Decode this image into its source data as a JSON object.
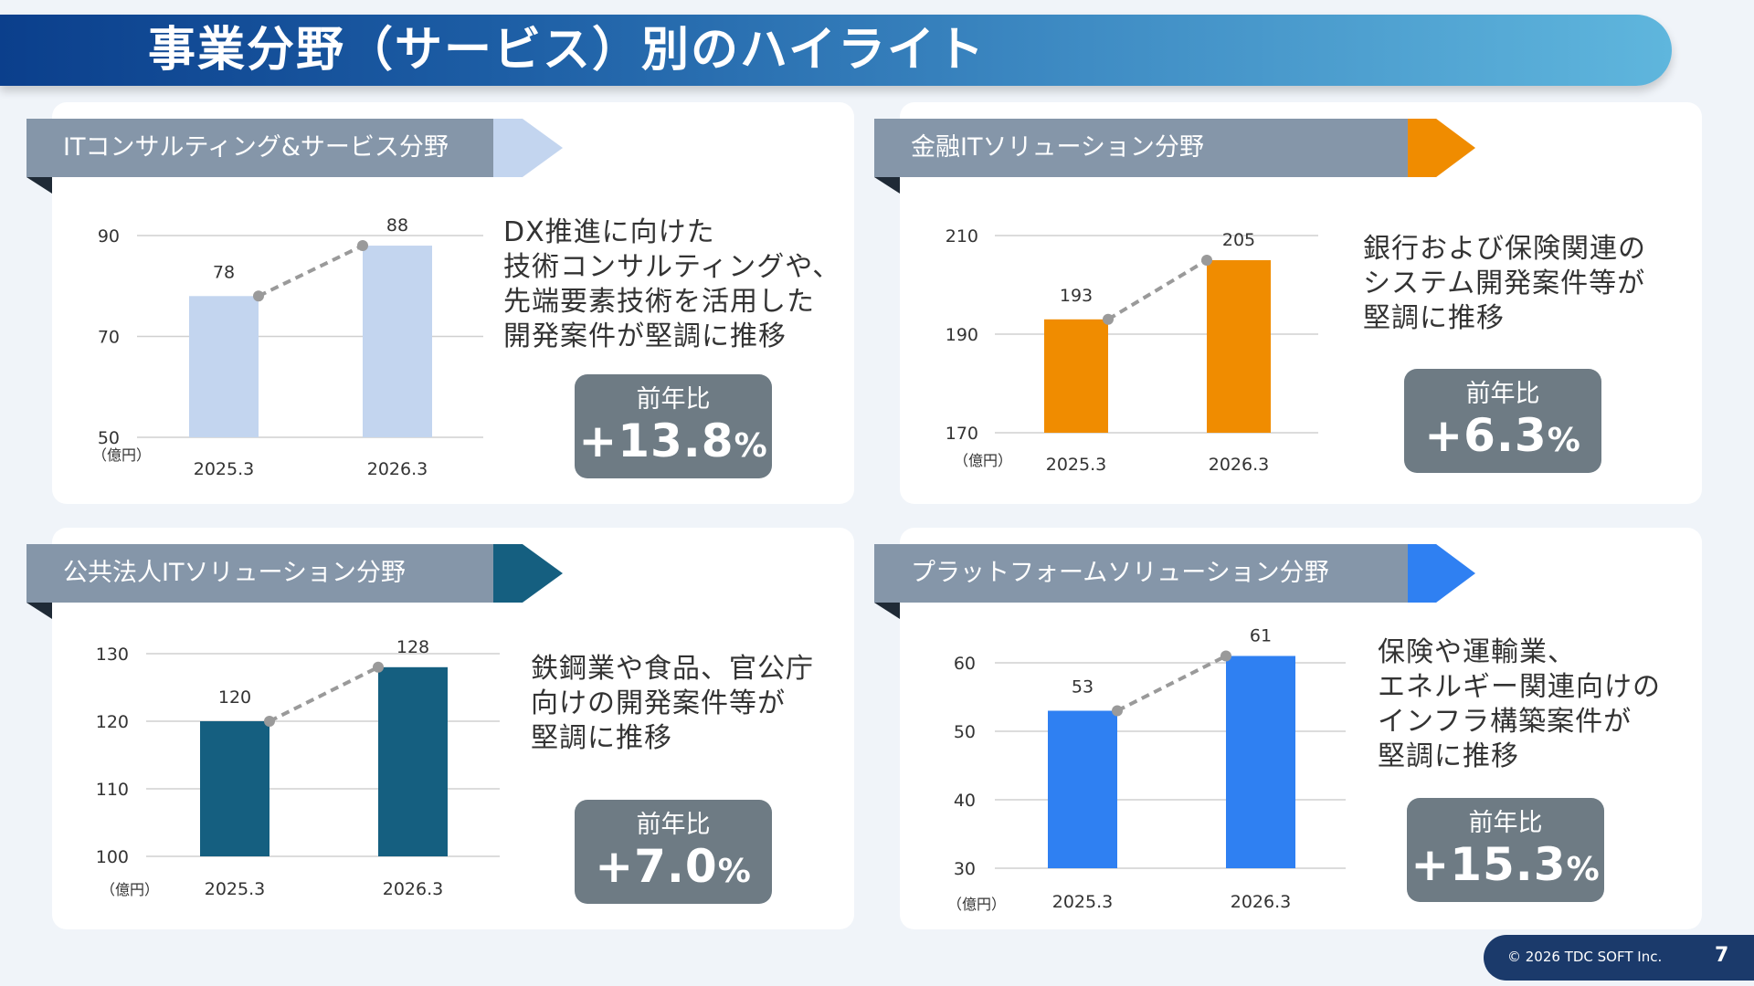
{
  "page": {
    "title": "事業分野（サービス）別のハイライト",
    "footer": {
      "copyright": "© 2026 TDC SOFT Inc.",
      "page_number": "7"
    }
  },
  "colors": {
    "ribbon": "#8596a9",
    "yoy_box": "#6e7b84",
    "trend_line": "#9a9a9a"
  },
  "segments": [
    {
      "title": "ITコンサルティング&サービス分野",
      "accent": "#c3d5ef",
      "description": "DX推進に向けた\n技術コンサルティングや、\n先端要素技術を活用した\n開発案件が堅調に推移",
      "yoy_label": "前年比",
      "yoy_value": "+13.8",
      "yoy_unit": "%"
    },
    {
      "title": "金融ITソリューション分野",
      "accent": "#f08c00",
      "description": "銀行および保険関連の\nシステム開発案件等が\n堅調に推移",
      "yoy_label": "前年比",
      "yoy_value": "+6.3",
      "yoy_unit": "%"
    },
    {
      "title": "公共法人ITソリューション分野",
      "accent": "#155f80",
      "description": "鉄鋼業や食品、官公庁\n向けの開発案件等が\n堅調に推移",
      "yoy_label": "前年比",
      "yoy_value": "+7.0",
      "yoy_unit": "%"
    },
    {
      "title": "プラットフォームソリューション分野",
      "accent": "#2f80f2",
      "description": "保険や運輸業、\nエネルギー関連向けの\nインフラ構築案件が\n堅調に推移",
      "yoy_label": "前年比",
      "yoy_value": "+15.3",
      "yoy_unit": "%"
    }
  ],
  "chart_data": [
    {
      "type": "bar",
      "categories": [
        "2025.3",
        "2026.3"
      ],
      "values": [
        78,
        88
      ],
      "ylabel": "（億円）",
      "ylim": [
        50,
        90
      ],
      "yticks": [
        50,
        70,
        90
      ],
      "grid": true,
      "trend_line": "dashed",
      "color": "#c3d5ef"
    },
    {
      "type": "bar",
      "categories": [
        "2025.3",
        "2026.3"
      ],
      "values": [
        193,
        205
      ],
      "ylabel": "（億円）",
      "ylim": [
        170,
        210
      ],
      "yticks": [
        170,
        190,
        210
      ],
      "grid": true,
      "trend_line": "dashed",
      "color": "#f08c00"
    },
    {
      "type": "bar",
      "categories": [
        "2025.3",
        "2026.3"
      ],
      "values": [
        120,
        128
      ],
      "ylabel": "（億円）",
      "ylim": [
        100,
        130
      ],
      "yticks": [
        100,
        110,
        120,
        130
      ],
      "grid": true,
      "trend_line": "dashed",
      "color": "#155f80"
    },
    {
      "type": "bar",
      "categories": [
        "2025.3",
        "2026.3"
      ],
      "values": [
        53,
        61
      ],
      "ylabel": "（億円）",
      "ylim": [
        30,
        60
      ],
      "yticks": [
        30,
        40,
        50,
        60
      ],
      "grid": true,
      "trend_line": "dashed",
      "color": "#2f80f2"
    }
  ]
}
